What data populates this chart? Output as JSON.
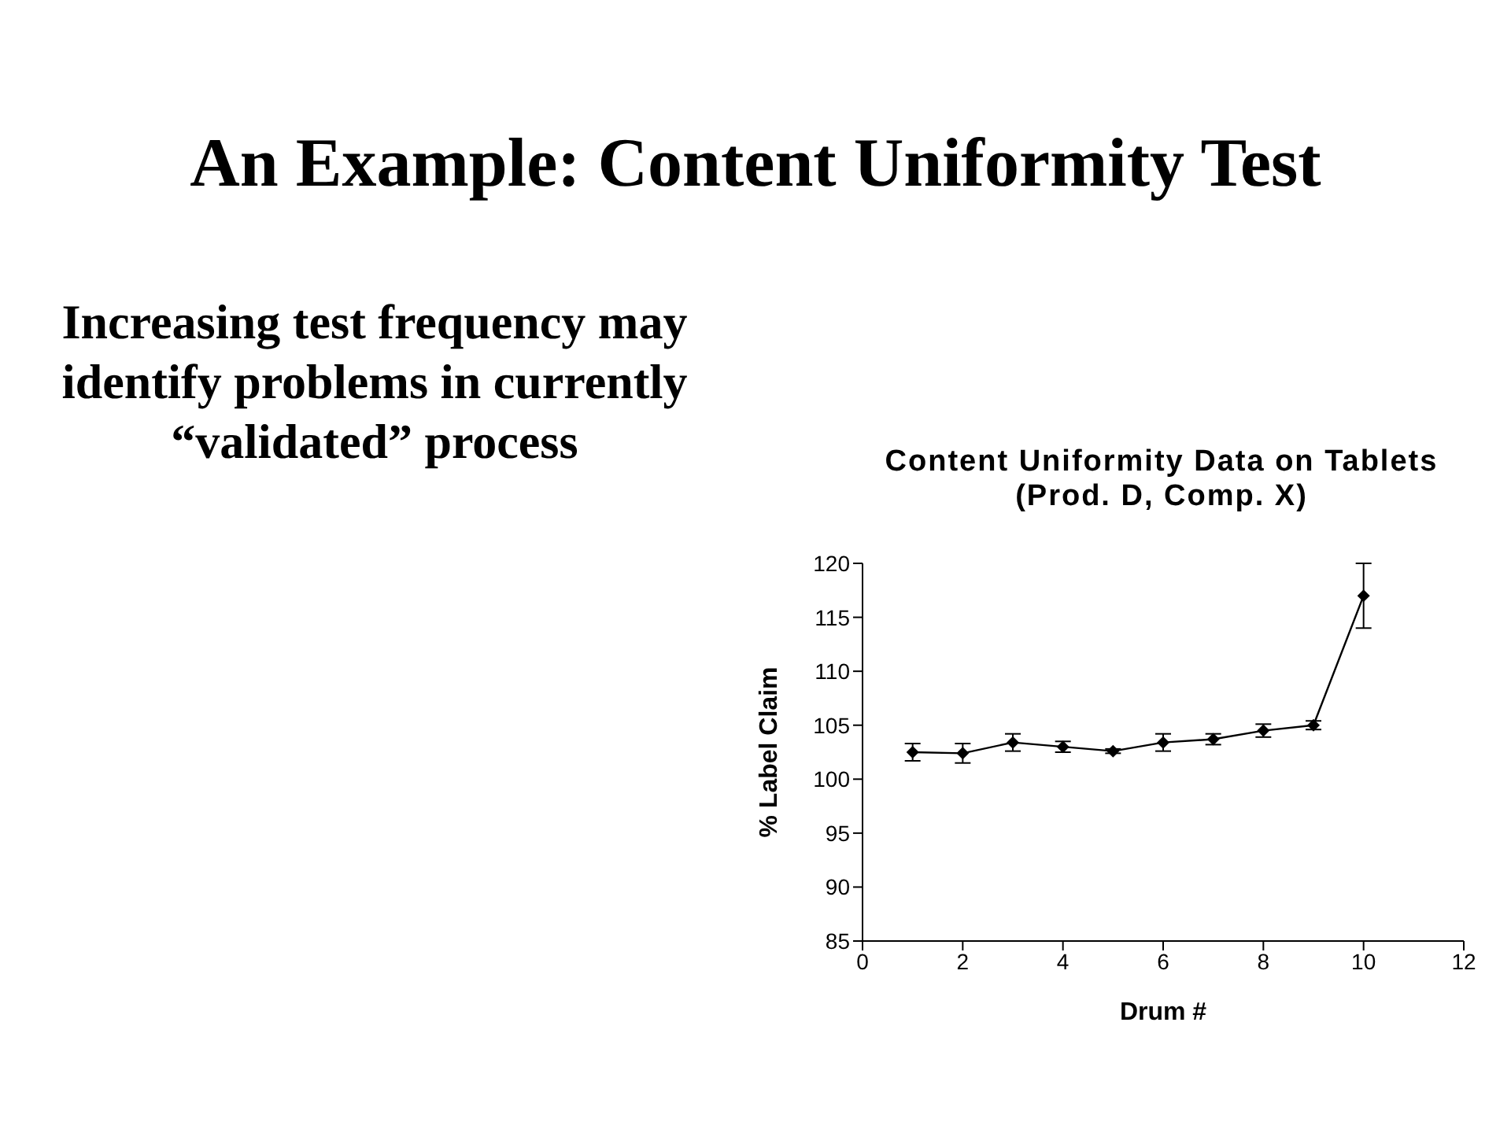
{
  "chart_data": {
    "type": "line",
    "title": "An Example: Content Uniformity Test",
    "subtitle": "Content Uniformity Data on Tablets (Prod. D, Comp. X)",
    "xlabel": "Drum #",
    "ylabel": "% Label Claim",
    "annotations": [
      "Increasing test frequency may identify problems in currently “validated” process"
    ],
    "x": [
      1,
      2,
      3,
      4,
      5,
      6,
      7,
      8,
      9,
      10
    ],
    "series": [
      {
        "color": "#000000",
        "values": [
          102.5,
          102.4,
          103.4,
          103.0,
          102.6,
          103.4,
          103.7,
          104.5,
          105.0,
          117.0
        ],
        "errors": [
          0.8,
          0.9,
          0.8,
          0.5,
          0.2,
          0.8,
          0.5,
          0.6,
          0.4,
          3
        ]
      }
    ],
    "xlim": [
      0,
      12
    ],
    "xticks": [
      0,
      2,
      4,
      6,
      8,
      10,
      12
    ],
    "ylim": [
      85,
      120
    ],
    "yticks": [
      85,
      90,
      95,
      100,
      105,
      110,
      115,
      120
    ],
    "grid": false,
    "legend": false,
    "marker": "diamond",
    "line_style": "solid"
  }
}
